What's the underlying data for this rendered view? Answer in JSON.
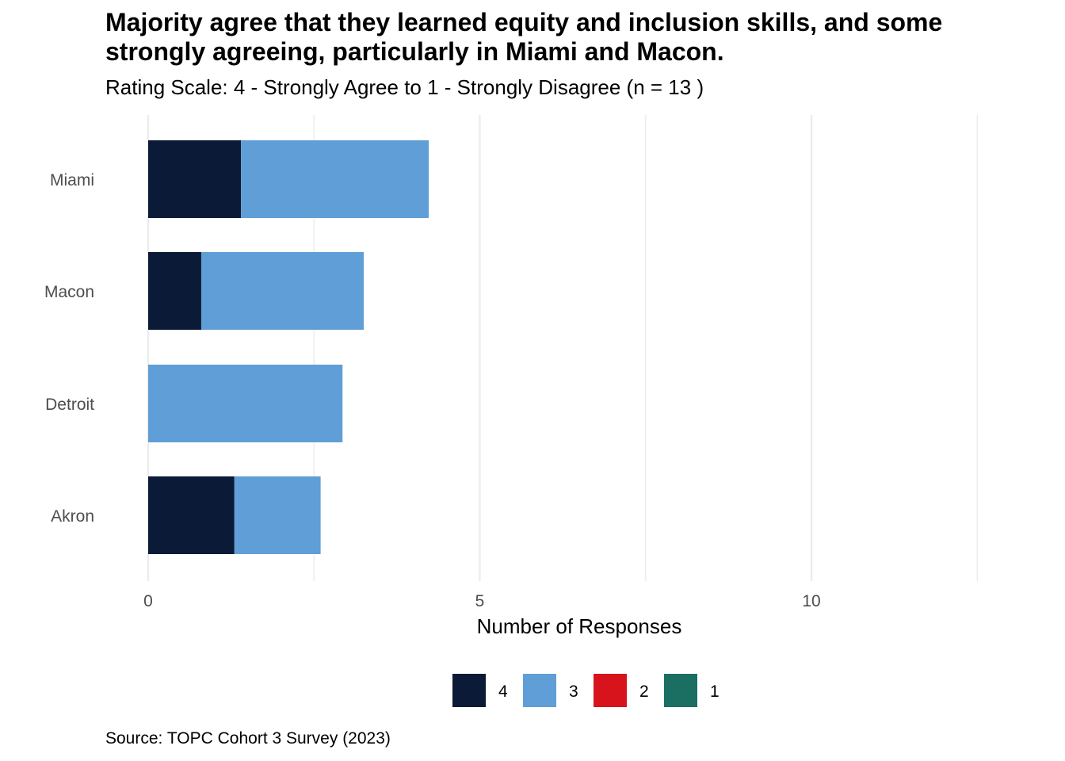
{
  "title": "Majority agree that they learned equity and inclusion skills, and some strongly agreeing, particularly in Miami and Macon.",
  "subtitle": "Rating Scale: 4 - Strongly Agree to 1 - Strongly Disagree (n = 13 )",
  "caption": "Source: TOPC Cohort 3 Survey (2023)",
  "chart_data": {
    "type": "bar",
    "orientation": "horizontal",
    "stacked": true,
    "categories": [
      "Miami",
      "Macon",
      "Detroit",
      "Akron"
    ],
    "series": [
      {
        "name": "4",
        "color": "#0b1a36",
        "values": [
          1.4,
          0.8,
          0,
          1.3
        ]
      },
      {
        "name": "3",
        "color": "#5f9ed6",
        "values": [
          2.83,
          2.45,
          2.93,
          1.3
        ]
      },
      {
        "name": "2",
        "color": "#d7141b",
        "values": [
          0,
          0,
          0,
          0
        ]
      },
      {
        "name": "1",
        "color": "#1b6e62",
        "values": [
          0,
          0,
          0,
          0
        ]
      }
    ],
    "xlabel": "Number of Responses",
    "ylabel": "",
    "xlim": [
      0,
      12.5
    ],
    "xticks": [
      0,
      5,
      10
    ],
    "grid": true,
    "legend_position": "bottom"
  }
}
